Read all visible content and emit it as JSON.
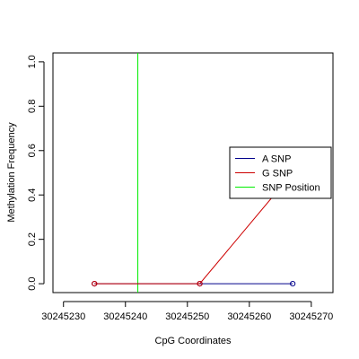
{
  "chart_data": {
    "type": "line",
    "title": "",
    "xlabel": "CpG Coordinates",
    "ylabel": "Methylation Frequency",
    "xlim": [
      30245228.3,
      30245273.5
    ],
    "ylim": [
      -0.04,
      1.04
    ],
    "x_ticks": [
      30245230,
      30245240,
      30245250,
      30245260,
      30245270
    ],
    "y_ticks": [
      0.0,
      0.2,
      0.4,
      0.6,
      0.8,
      1.0
    ],
    "x_tick_labels": [
      "30245230",
      "30245240",
      "30245250",
      "30245260",
      "30245270"
    ],
    "y_tick_labels": [
      "0.0",
      "0.2",
      "0.4",
      "0.6",
      "0.8",
      "1.0"
    ],
    "grid": false,
    "legend_position": "right",
    "legend": [
      "A SNP",
      "G SNP",
      "SNP Position"
    ],
    "series": [
      {
        "name": "A SNP",
        "color": "#00008B",
        "points": [
          {
            "x": 30245235,
            "y": 0.0
          },
          {
            "x": 30245252,
            "y": 0.0
          },
          {
            "x": 30245267,
            "y": 0.0
          }
        ]
      },
      {
        "name": "G SNP",
        "color": "#CD0000",
        "points": [
          {
            "x": 30245235,
            "y": 0.0
          },
          {
            "x": 30245252,
            "y": 0.0
          },
          {
            "x": 30245267,
            "y": 0.5
          }
        ]
      }
    ],
    "snp_position": {
      "name": "SNP Position",
      "x": 30245242,
      "color": "#00EE00"
    }
  }
}
